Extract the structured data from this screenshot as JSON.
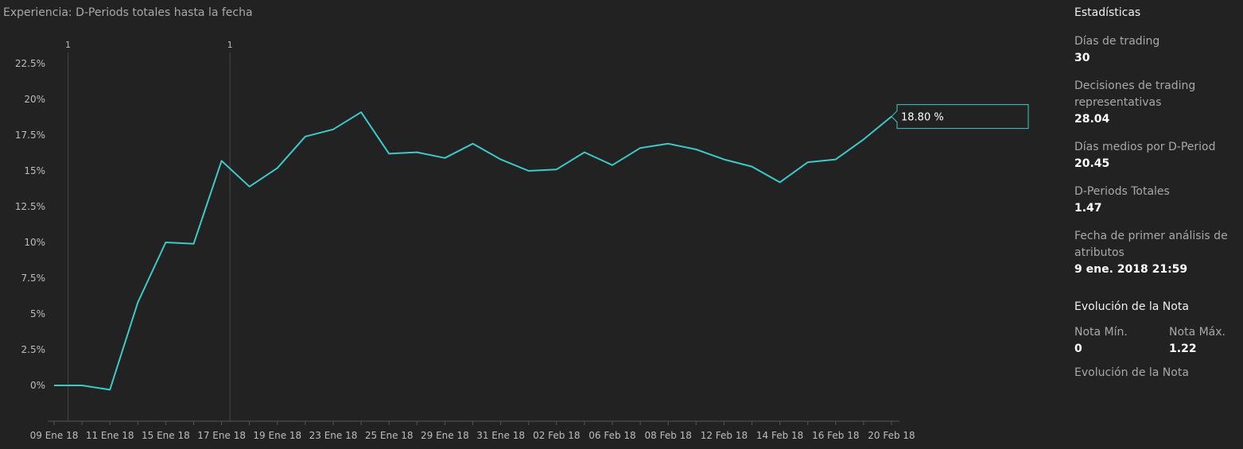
{
  "chart_title": "Experiencia: D-Periods totales hasta la fecha",
  "callout_text": "18.80 %",
  "colors": {
    "background": "#222222",
    "line": "#3ec9c9",
    "axis": "#555555",
    "text": "#bdbdbd"
  },
  "chart_data": {
    "type": "line",
    "title": "Experiencia: D-Periods totales hasta la fecha",
    "xlabel": "",
    "ylabel": "",
    "ylim": [
      -2.5,
      22.5
    ],
    "yticks": [
      0,
      2.5,
      5,
      7.5,
      10,
      12.5,
      15,
      17.5,
      20,
      22.5
    ],
    "ytick_labels": [
      "0%",
      "2.5%",
      "5%",
      "7.5%",
      "10%",
      "12.5%",
      "15%",
      "17.5%",
      "20%",
      "22.5%"
    ],
    "xtick_labels": [
      "09 Ene 18",
      "11 Ene 18",
      "15 Ene 18",
      "17 Ene 18",
      "19 Ene 18",
      "23 Ene 18",
      "25 Ene 18",
      "29 Ene 18",
      "31 Ene 18",
      "02 Feb 18",
      "06 Feb 18",
      "08 Feb 18",
      "12 Feb 18",
      "14 Feb 18",
      "16 Feb 18",
      "20 Feb 18"
    ],
    "xtick_indices": [
      0,
      2,
      4,
      6,
      8,
      10,
      12,
      14,
      16,
      18,
      20,
      22,
      24,
      26,
      28,
      30
    ],
    "values": [
      0,
      0,
      -0.3,
      5.8,
      10.0,
      9.9,
      15.7,
      13.9,
      15.2,
      17.4,
      17.9,
      19.1,
      16.2,
      16.3,
      15.9,
      16.9,
      15.8,
      15.0,
      15.1,
      16.3,
      15.4,
      16.6,
      16.9,
      16.5,
      15.8,
      15.3,
      14.2,
      15.6,
      15.8,
      17.2,
      18.8
    ],
    "markers": [
      {
        "index": 0.5,
        "label": "1"
      },
      {
        "index": 6.3,
        "label": "1"
      }
    ],
    "grid": false,
    "last_value_label": "18.80 %"
  },
  "stats": {
    "heading": "Estadísticas",
    "items": [
      {
        "label": "Días de trading",
        "value": "30"
      },
      {
        "label": "Decisiones de trading representativas",
        "value": "28.04"
      },
      {
        "label": "Días medios por D-Period",
        "value": "20.45"
      },
      {
        "label": "D-Periods Totales",
        "value": "1.47"
      },
      {
        "label": "Fecha de primer análisis de atributos",
        "value": "9 ene. 2018 21:59"
      }
    ]
  },
  "nota": {
    "heading": "Evolución de la Nota",
    "min_label": "Nota Mín.",
    "min_value": "0",
    "max_label": "Nota Máx.",
    "max_value": "1.22",
    "footer": "Evolución de la Nota"
  }
}
